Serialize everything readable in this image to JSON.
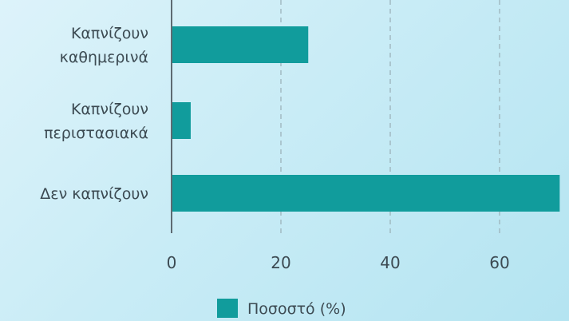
{
  "chart_data": {
    "type": "bar",
    "orientation": "horizontal",
    "categories": [
      [
        "Καπνίζουν",
        "καθημερινά"
      ],
      [
        "Καπνίζουν",
        "περιστασιακά"
      ],
      [
        "Δεν καπνίζουν"
      ]
    ],
    "series": [
      {
        "name": "Ποσοστό (%)",
        "values": [
          25,
          3.5,
          71
        ],
        "color": "#119c9c"
      }
    ],
    "x_ticks": [
      "0",
      "20",
      "40",
      "60"
    ],
    "xlim": [
      0,
      70
    ],
    "grid": true,
    "legend_position": "bottom"
  }
}
